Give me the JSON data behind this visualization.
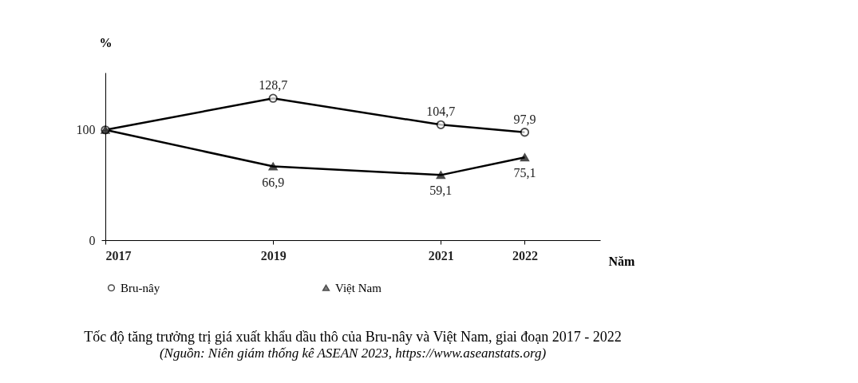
{
  "chart_data": {
    "type": "line",
    "title": "Tốc độ tăng trưởng trị giá xuất khẩu dầu thô của Bru-nây và Việt Nam, giai đoạn 2017 - 2022",
    "xlabel": "Năm",
    "ylabel": "%",
    "x": [
      2017,
      2019,
      2021,
      2022
    ],
    "series": [
      {
        "name": "Bru-nây",
        "color": "#000000",
        "marker": "circle",
        "values": [
          100,
          128.7,
          104.7,
          97.9
        ],
        "value_labels": [
          null,
          "128,7",
          "104,7",
          "97,9"
        ]
      },
      {
        "name": "Việt Nam",
        "color": "#000000",
        "marker": "triangle",
        "values": [
          100,
          66.9,
          59.1,
          75.1
        ],
        "value_labels": [
          null,
          "66,9",
          "59,1",
          "75,1"
        ]
      }
    ],
    "xlim": [
      2017,
      2022.9
    ],
    "xticks": [
      2017,
      2019,
      2021,
      2022
    ],
    "ylim": [
      0,
      152
    ],
    "yticks": [
      0,
      100
    ],
    "grid": false,
    "legend": "bottom",
    "line_style": "solid",
    "annotations": [
      "(Nguồn: Niên giám thống kê ASEAN 2023, https://www.aseanstats.org)"
    ]
  }
}
